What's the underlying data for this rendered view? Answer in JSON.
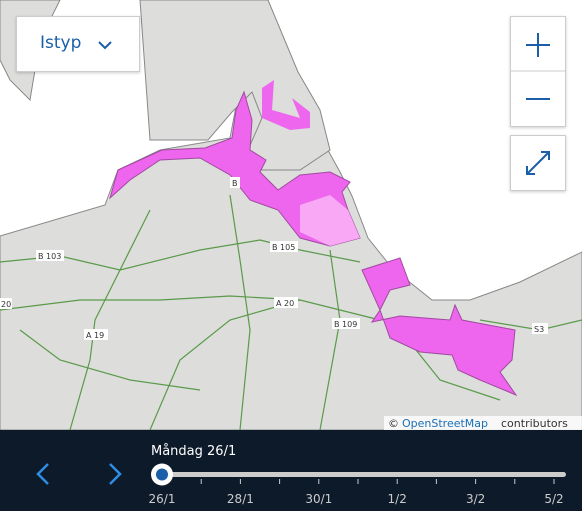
{
  "filter": {
    "label": "Istyp"
  },
  "map": {
    "road_labels": [
      "B 103",
      "B 105",
      "A 20",
      "B 109",
      "A 19",
      "S3",
      "B",
      "20"
    ],
    "attribution": {
      "symbol": "©",
      "link": "OpenStreetMap",
      "text": "contributors"
    }
  },
  "timeline": {
    "current": "Måndag 26/1",
    "ticks": [
      "26/1",
      "28/1",
      "30/1",
      "1/2",
      "3/2",
      "5/2"
    ]
  }
}
